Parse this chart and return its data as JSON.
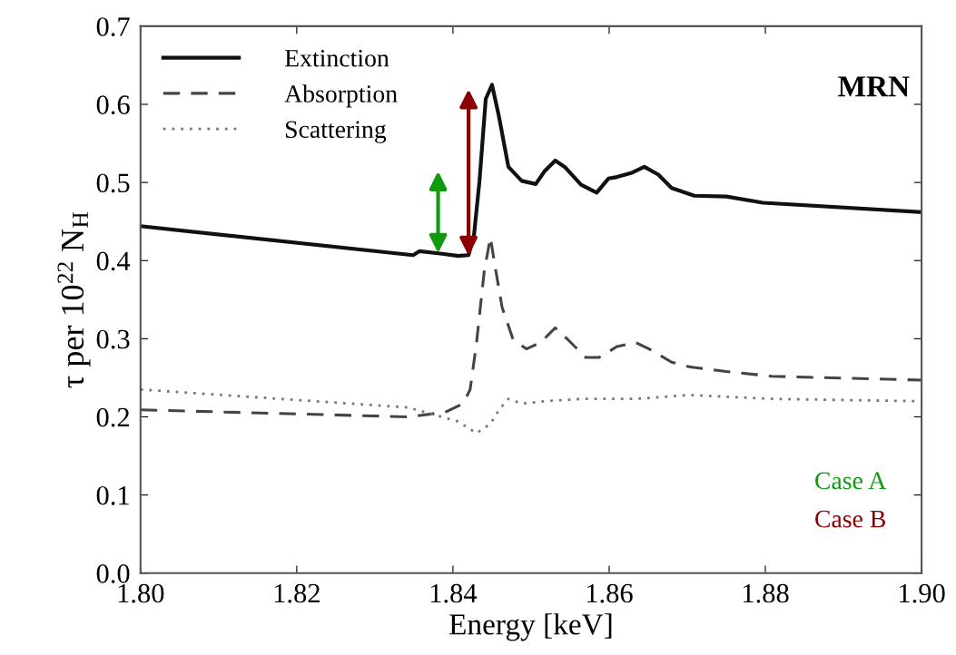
{
  "chart_data": {
    "type": "line",
    "xlabel": "Energy [keV]",
    "ylabel": "τ per 10$^{22}$ N$_{H}$",
    "xlim": [
      1.8,
      1.9
    ],
    "ylim": [
      0.0,
      0.7
    ],
    "xticks": [
      {
        "value": 1.8,
        "label": "1.80"
      },
      {
        "value": 1.82,
        "label": "1.82"
      },
      {
        "value": 1.84,
        "label": "1.84"
      },
      {
        "value": 1.86,
        "label": "1.86"
      },
      {
        "value": 1.88,
        "label": "1.88"
      },
      {
        "value": 1.9,
        "label": "1.90"
      }
    ],
    "yticks": [
      {
        "value": 0.0,
        "label": "0.0"
      },
      0.1,
      0.2,
      0.3,
      0.4,
      0.5,
      0.6,
      0.7
    ],
    "grid": false,
    "legend": "top left",
    "marker": "none",
    "series": [
      {
        "name": "Extinction",
        "color": "#111111",
        "line_style": "solid",
        "x": [
          1.8,
          1.8349,
          1.8357,
          1.8384,
          1.8407,
          1.842,
          1.8427,
          1.8434,
          1.8442,
          1.845,
          1.8459,
          1.8471,
          1.8488,
          1.8506,
          1.8517,
          1.8531,
          1.8543,
          1.8564,
          1.8584,
          1.8599,
          1.861,
          1.8628,
          1.8645,
          1.8663,
          1.868,
          1.8709,
          1.875,
          1.8797,
          1.9
        ],
        "values": [
          0.444,
          0.407,
          0.412,
          0.409,
          0.406,
          0.407,
          0.433,
          0.502,
          0.607,
          0.625,
          0.584,
          0.52,
          0.502,
          0.498,
          0.514,
          0.528,
          0.52,
          0.497,
          0.487,
          0.505,
          0.507,
          0.512,
          0.52,
          0.51,
          0.493,
          0.483,
          0.482,
          0.474,
          0.462
        ]
      },
      {
        "name": "Absorption",
        "color": "#444444",
        "line_style": "dashed",
        "x": [
          1.8,
          1.8343,
          1.839,
          1.8413,
          1.8422,
          1.843,
          1.844,
          1.8448,
          1.8453,
          1.8463,
          1.8477,
          1.8494,
          1.8512,
          1.8531,
          1.8547,
          1.857,
          1.8587,
          1.861,
          1.8634,
          1.8651,
          1.868,
          1.8703,
          1.875,
          1.8808,
          1.9
        ],
        "values": [
          0.209,
          0.2,
          0.206,
          0.217,
          0.235,
          0.293,
          0.386,
          0.43,
          0.398,
          0.34,
          0.299,
          0.287,
          0.295,
          0.314,
          0.299,
          0.276,
          0.276,
          0.29,
          0.295,
          0.287,
          0.27,
          0.264,
          0.258,
          0.252,
          0.247
        ]
      },
      {
        "name": "Scattering",
        "color": "#777777",
        "line_style": "dotted",
        "x": [
          1.8,
          1.8343,
          1.8378,
          1.8407,
          1.843,
          1.8448,
          1.8459,
          1.8471,
          1.8488,
          1.8517,
          1.8564,
          1.8634,
          1.8703,
          1.8808,
          1.9
        ],
        "values": [
          0.235,
          0.212,
          0.202,
          0.194,
          0.179,
          0.191,
          0.209,
          0.223,
          0.217,
          0.22,
          0.223,
          0.223,
          0.228,
          0.223,
          0.22
        ]
      }
    ],
    "annotations": [
      "MRN",
      "Case A",
      "Case B"
    ]
  }
}
